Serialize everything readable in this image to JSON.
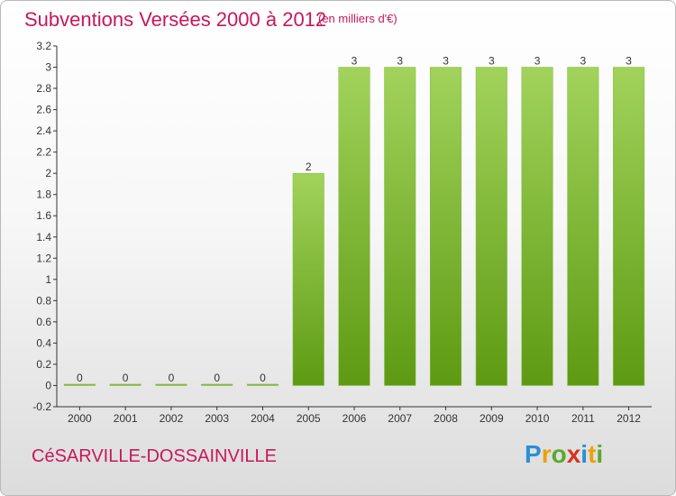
{
  "header": {
    "title": "Subventions Versées 2000 à 2012",
    "unit_note": "(en milliers d'€)"
  },
  "footer": {
    "commune": "CéSARVILLE-DOSSAINVILLE",
    "brand": "Proxiti",
    "brand_letters": [
      {
        "ch": "P",
        "color": "#2a8fd4"
      },
      {
        "ch": "r",
        "color": "#e8a20c"
      },
      {
        "ch": "o",
        "color": "#59a92d"
      },
      {
        "ch": "x",
        "color": "#d9321f"
      },
      {
        "ch": "i",
        "color": "#2a8fd4"
      },
      {
        "ch": "t",
        "color": "#e8a20c"
      },
      {
        "ch": "i",
        "color": "#59a92d"
      }
    ]
  },
  "colors": {
    "title": "#c8175b",
    "bar_light": "#9fd158",
    "bar_dark": "#5d9a12",
    "axis": "#333333"
  },
  "chart_data": {
    "type": "bar",
    "title": "Subventions Versées 2000 à 2012",
    "categories": [
      "2000",
      "2001",
      "2002",
      "2003",
      "2004",
      "2005",
      "2006",
      "2007",
      "2008",
      "2009",
      "2010",
      "2011",
      "2012"
    ],
    "values": [
      0,
      0,
      0,
      0,
      0,
      2,
      3,
      3,
      3,
      3,
      3,
      3,
      3
    ],
    "value_labels": [
      "0",
      "0",
      "0",
      "0",
      "0",
      "2",
      "3",
      "3",
      "3",
      "3",
      "3",
      "3",
      "3"
    ],
    "ylim": [
      -0.2,
      3.2
    ],
    "yticks": [
      "-0.2",
      "0",
      "0.2",
      "0.4",
      "0.6",
      "0.8",
      "1",
      "1.2",
      "1.4",
      "1.6",
      "1.8",
      "2",
      "2.2",
      "2.4",
      "2.6",
      "2.8",
      "3",
      "3.2"
    ],
    "ytick_values": [
      -0.2,
      0,
      0.2,
      0.4,
      0.6,
      0.8,
      1,
      1.2,
      1.4,
      1.6,
      1.8,
      2,
      2.2,
      2.4,
      2.6,
      2.8,
      3,
      3.2
    ],
    "xlabel": "",
    "ylabel": "",
    "grid": false,
    "legend": "none"
  }
}
